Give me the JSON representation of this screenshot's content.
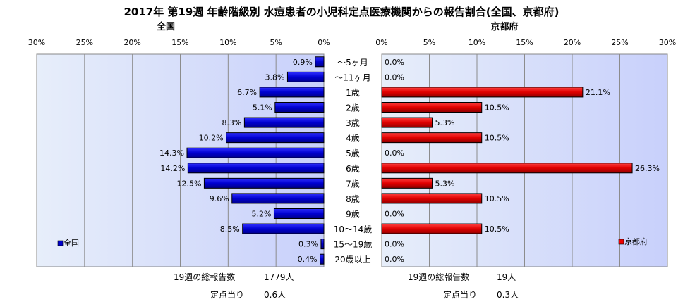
{
  "title": "2017年 第19週 年齢階級別 水痘患者の小児科定点医療機関からの報告割合(全国、京都府)",
  "chart_data": [
    {
      "type": "bar",
      "orientation": "horizontal",
      "direction": "right-to-left",
      "title": "全国",
      "categories": [
        "～5ヶ月",
        "～11ヶ月",
        "1歳",
        "2歳",
        "3歳",
        "4歳",
        "5歳",
        "6歳",
        "7歳",
        "8歳",
        "9歳",
        "10～14歳",
        "15～19歳",
        "20歳以上"
      ],
      "series": [
        {
          "name": "全国",
          "values": [
            0.9,
            3.8,
            6.7,
            5.1,
            8.3,
            10.2,
            14.3,
            14.2,
            12.5,
            9.6,
            5.2,
            8.5,
            0.3,
            0.4
          ]
        }
      ],
      "value_labels": [
        "0.9%",
        "3.8%",
        "6.7%",
        "5.1%",
        "8.3%",
        "10.2%",
        "14.3%",
        "14.2%",
        "12.5%",
        "9.6%",
        "5.2%",
        "8.5%",
        "0.3%",
        "0.4%"
      ],
      "xlim": [
        0,
        30
      ],
      "xticks": [
        "30%",
        "25%",
        "20%",
        "15%",
        "10%",
        "5%",
        "0%"
      ],
      "grid": true,
      "legend": "bottom-left",
      "color": "#0000cc"
    },
    {
      "type": "bar",
      "orientation": "horizontal",
      "direction": "left-to-right",
      "title": "京都府",
      "categories": [
        "～5ヶ月",
        "～11ヶ月",
        "1歳",
        "2歳",
        "3歳",
        "4歳",
        "5歳",
        "6歳",
        "7歳",
        "8歳",
        "9歳",
        "10～14歳",
        "15～19歳",
        "20歳以上"
      ],
      "series": [
        {
          "name": "京都府",
          "values": [
            0.0,
            0.0,
            21.1,
            10.5,
            5.3,
            10.5,
            0.0,
            26.3,
            5.3,
            10.5,
            0.0,
            10.5,
            0.0,
            0.0
          ]
        }
      ],
      "value_labels": [
        "0.0%",
        "0.0%",
        "21.1%",
        "10.5%",
        "5.3%",
        "10.5%",
        "0.0%",
        "26.3%",
        "5.3%",
        "10.5%",
        "0.0%",
        "10.5%",
        "0.0%",
        "0.0%"
      ],
      "xlim": [
        0,
        30
      ],
      "xticks": [
        "0%",
        "5%",
        "10%",
        "15%",
        "20%",
        "25%",
        "30%"
      ],
      "grid": true,
      "legend": "bottom-right",
      "color": "#ee0000"
    }
  ],
  "summary": {
    "national_total_label": "19週の総報告数",
    "national_total_value": "1779人",
    "national_per_label": "定点当り",
    "national_per_value": "0.6人",
    "kyoto_total_label": "19週の総報告数",
    "kyoto_total_value": "19人",
    "kyoto_per_label": "定点当り",
    "kyoto_per_value": "0.3人"
  }
}
